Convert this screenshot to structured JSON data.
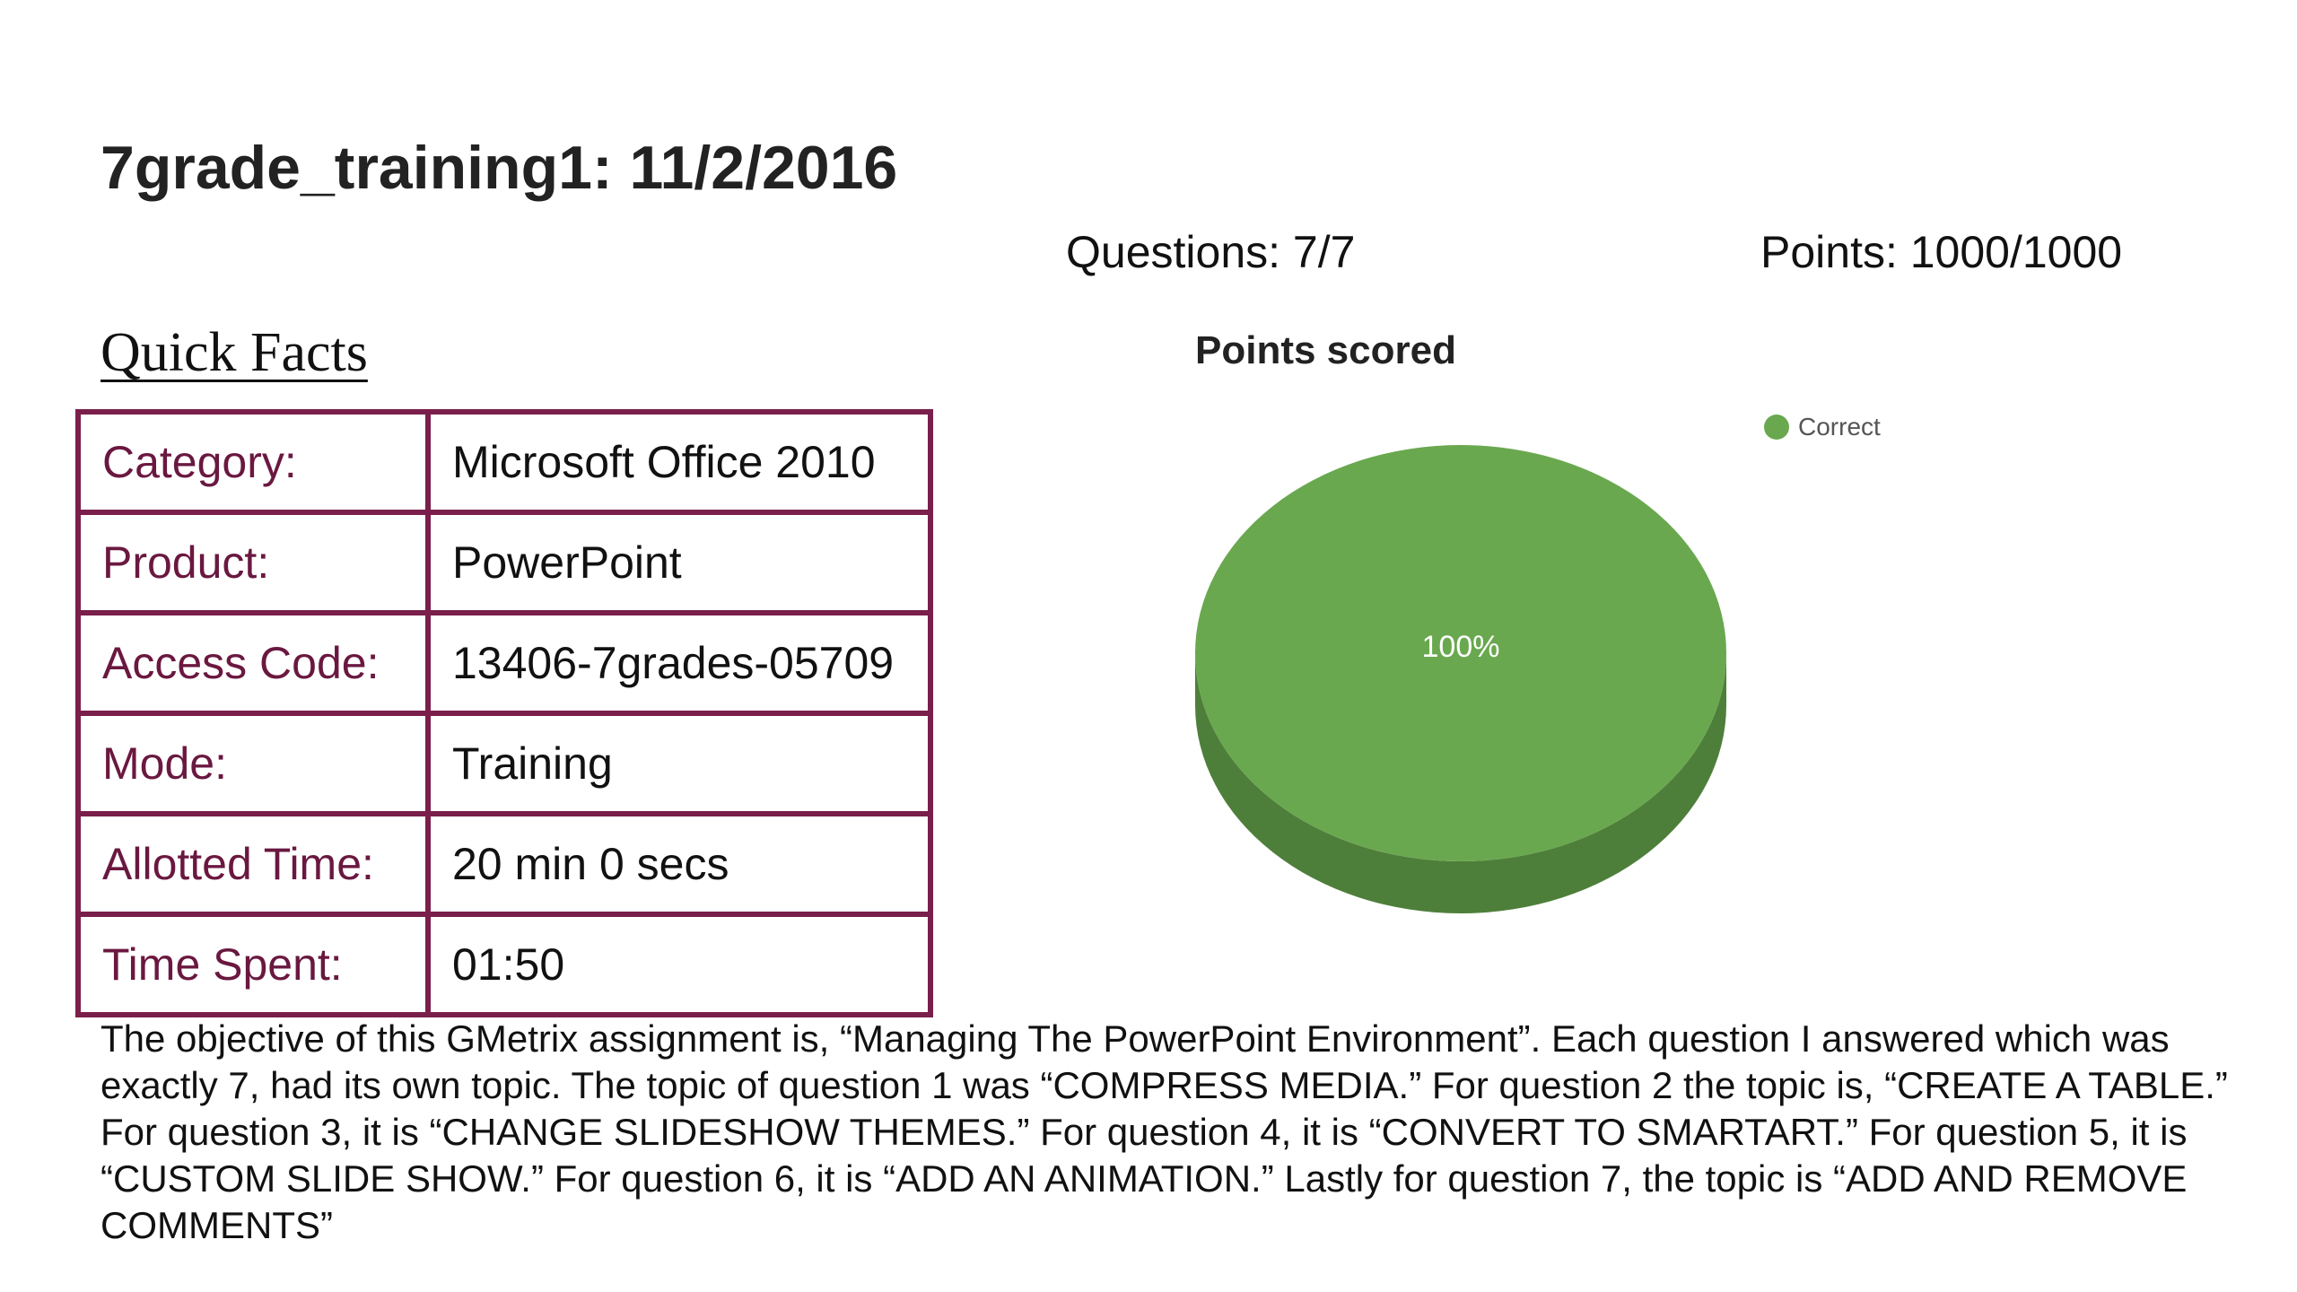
{
  "header": {
    "title": "7grade_training1: 11/2/2016",
    "questions": "Questions: 7/7",
    "points": "Points: 1000/1000"
  },
  "quick_facts": {
    "heading": "Quick Facts",
    "rows": [
      {
        "label": "Category:",
        "value": "Microsoft Office 2010"
      },
      {
        "label": "Product:",
        "value": "PowerPoint"
      },
      {
        "label": "Access Code:",
        "value": "13406-7grades-05709"
      },
      {
        "label": "Mode:",
        "value": "Training"
      },
      {
        "label": "Allotted Time:",
        "value": "20 min 0 secs"
      },
      {
        "label": "Time Spent:",
        "value": "01:50"
      }
    ]
  },
  "chart_data": {
    "type": "pie",
    "title": "Points scored",
    "labels": [
      "Correct"
    ],
    "values": [
      100
    ],
    "data_labels": [
      "100%"
    ],
    "colors": [
      "#6aa84f"
    ],
    "legend_position": "top-right",
    "style": "3d"
  },
  "objective": "The objective of this GMetrix assignment is, “Managing The PowerPoint Environment”. Each question I answered which was exactly 7, had its own topic. The topic of question 1 was “COMPRESS MEDIA.” For question 2 the topic is, “CREATE A TABLE.” For question 3, it is “CHANGE SLIDESHOW THEMES.” For question 4, it is “CONVERT TO SMARTART.” For question 5, it is “CUSTOM SLIDE SHOW.” For question 6, it is “ADD AN ANIMATION.” Lastly for question 7, the topic is “ADD AND REMOVE COMMENTS”",
  "colors": {
    "table_border": "#7a1f4b",
    "label_text": "#6a1840",
    "pie_top": "#6aa84f",
    "pie_side": "#4e7f3a"
  }
}
